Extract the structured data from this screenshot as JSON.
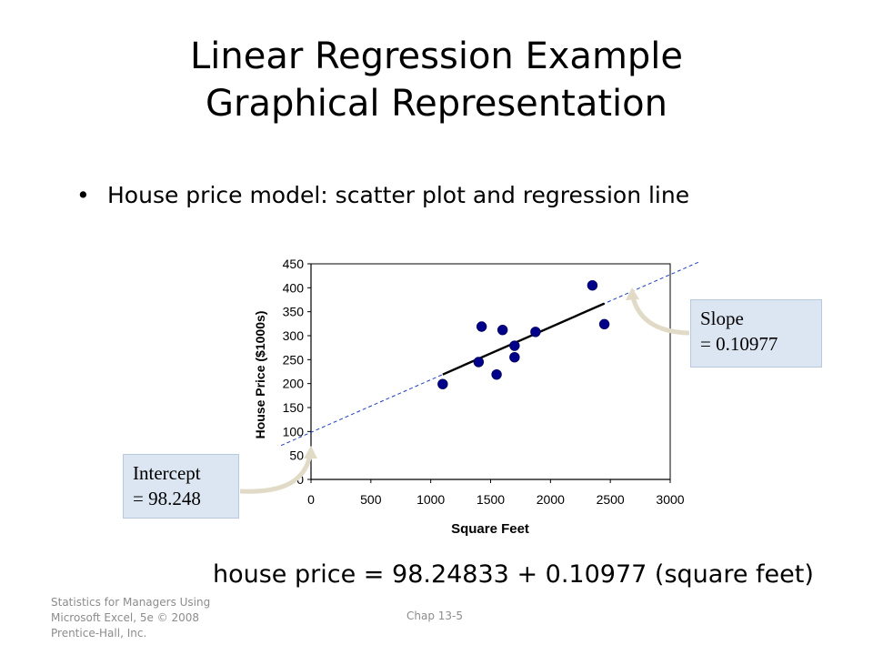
{
  "title": {
    "line1": "Linear Regression Example",
    "line2": "Graphical Representation"
  },
  "bullet": {
    "symbol": "•",
    "text": "House price model:  scatter plot and regression line"
  },
  "chart_data": {
    "type": "scatter",
    "xlabel": "Square Feet",
    "ylabel": "House Price ($1000s)",
    "xlim": [
      0,
      3000
    ],
    "ylim": [
      0,
      450
    ],
    "x_ticks": [
      "0",
      "500",
      "1000",
      "1500",
      "2000",
      "2500",
      "3000"
    ],
    "y_ticks": [
      "0",
      "50",
      "100",
      "150",
      "200",
      "250",
      "300",
      "350",
      "400",
      "450"
    ],
    "grid": false,
    "series": [
      {
        "points": [
          {
            "x": 1100,
            "y": 199
          },
          {
            "x": 1400,
            "y": 245
          },
          {
            "x": 1425,
            "y": 319
          },
          {
            "x": 1550,
            "y": 219
          },
          {
            "x": 1600,
            "y": 312
          },
          {
            "x": 1700,
            "y": 279
          },
          {
            "x": 1700,
            "y": 255
          },
          {
            "x": 1875,
            "y": 308
          },
          {
            "x": 2350,
            "y": 405
          },
          {
            "x": 2450,
            "y": 324
          }
        ]
      }
    ],
    "regression_line": {
      "intercept": 98.24833,
      "slope": 0.10977,
      "x_range": [
        1100,
        2450
      ]
    },
    "colors": {
      "point": "#00008b",
      "point_outline": "#000066",
      "fit_line": "#000000",
      "extended_line": "#1f3fbf"
    }
  },
  "callouts": {
    "slope": {
      "line1": "Slope",
      "line2": "= 0.10977"
    },
    "intercept": {
      "line1": "Intercept",
      "line2": "= 98.248"
    }
  },
  "equation": {
    "lhs": "house price",
    "operator_eq": "=",
    "intercept_value": "98.24833",
    "operator_plus": "+",
    "slope_value": "0.10977",
    "term": "(square feet)"
  },
  "footer": {
    "left_line1": "Statistics for Managers Using",
    "left_line2": "Microsoft Excel, 5e © 2008",
    "left_line3": "Prentice-Hall, Inc.",
    "center": "Chap 13-5"
  }
}
